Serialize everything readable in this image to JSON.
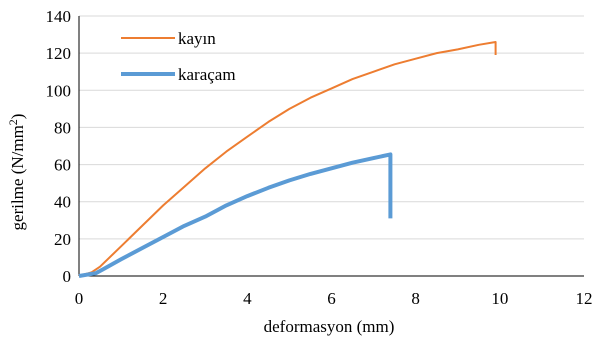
{
  "chart_data": {
    "type": "line",
    "xlabel": "deformasyon (mm)",
    "ylabel_text": "gerilme (N/mm",
    "ylabel_sup": "2",
    "ylabel_close": ")",
    "xlim": [
      0,
      12
    ],
    "ylim": [
      0,
      140
    ],
    "xticks": [
      0,
      2,
      4,
      6,
      8,
      10,
      12
    ],
    "yticks": [
      0,
      20,
      40,
      60,
      80,
      100,
      120,
      140
    ],
    "grid": "horizontal",
    "legend_position": "top-left",
    "series": [
      {
        "name": "kayın",
        "color": "#ED7D31",
        "points": [
          [
            0,
            0
          ],
          [
            0.3,
            2
          ],
          [
            0.5,
            5
          ],
          [
            1.0,
            16
          ],
          [
            1.5,
            27
          ],
          [
            2.0,
            38
          ],
          [
            2.5,
            48
          ],
          [
            3.0,
            58
          ],
          [
            3.5,
            67
          ],
          [
            4.0,
            75
          ],
          [
            4.5,
            83
          ],
          [
            5.0,
            90
          ],
          [
            5.5,
            96
          ],
          [
            6.0,
            101
          ],
          [
            6.5,
            106
          ],
          [
            7.0,
            110
          ],
          [
            7.5,
            114
          ],
          [
            8.0,
            117
          ],
          [
            8.5,
            120
          ],
          [
            9.0,
            122
          ],
          [
            9.5,
            124.5
          ],
          [
            9.9,
            126
          ],
          [
            9.9,
            119
          ]
        ]
      },
      {
        "name": "karaçam",
        "color": "#5B9BD5",
        "points": [
          [
            0,
            0
          ],
          [
            0.4,
            1.5
          ],
          [
            0.6,
            4
          ],
          [
            1.0,
            9
          ],
          [
            1.5,
            15
          ],
          [
            2.0,
            21
          ],
          [
            2.5,
            27
          ],
          [
            3.0,
            32
          ],
          [
            3.5,
            38
          ],
          [
            4.0,
            43
          ],
          [
            4.5,
            47.5
          ],
          [
            5.0,
            51.5
          ],
          [
            5.5,
            55
          ],
          [
            6.0,
            58
          ],
          [
            6.5,
            61
          ],
          [
            7.0,
            63.5
          ],
          [
            7.4,
            65.5
          ],
          [
            7.4,
            31
          ]
        ]
      }
    ]
  }
}
